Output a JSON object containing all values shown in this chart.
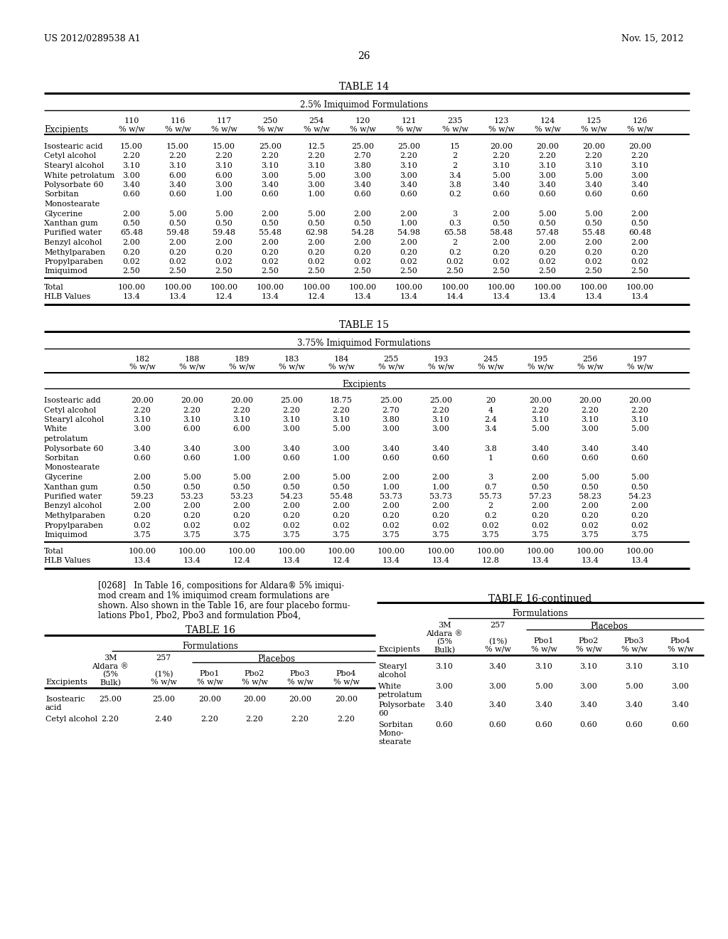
{
  "header_left": "US 2012/0289538 A1",
  "header_right": "Nov. 15, 2012",
  "page_number": "26"
}
